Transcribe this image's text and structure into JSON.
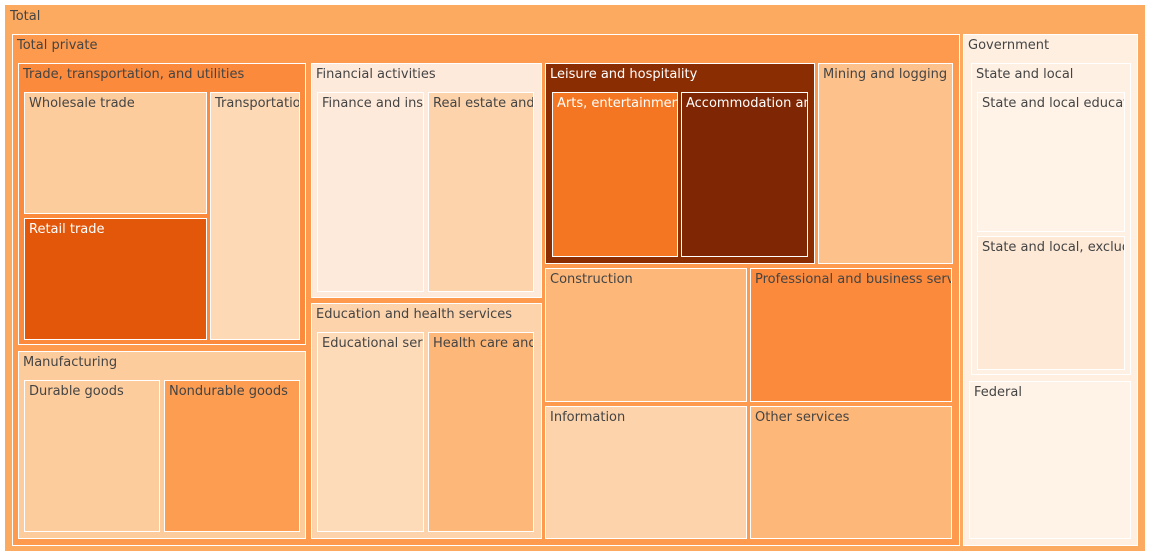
{
  "chart_data": {
    "type": "treemap",
    "root": {
      "name": "Total",
      "color": "#fdaa61",
      "children": [
        {
          "name": "Total private",
          "color": "#fd9a4d",
          "children": [
            {
              "name": "Trade, transportation, and utilities",
              "color": "#fb8a3c",
              "children": [
                {
                  "name": "Wholesale trade",
                  "color": "#fdcc9d"
                },
                {
                  "name": "Retail trade",
                  "color": "#e3570a"
                },
                {
                  "name": "Transportation and warehousing",
                  "color": "#fdd9b6"
                }
              ]
            },
            {
              "name": "Manufacturing",
              "color": "#fdcc9d",
              "children": [
                {
                  "name": "Durable goods",
                  "color": "#fdcc9d"
                },
                {
                  "name": "Nondurable goods",
                  "color": "#fd9d52"
                }
              ]
            },
            {
              "name": "Financial activities",
              "color": "#feeadb",
              "children": [
                {
                  "name": "Finance and insurance",
                  "color": "#feeadb"
                },
                {
                  "name": "Real estate and rental and leasing",
                  "color": "#fdd3ab"
                }
              ]
            },
            {
              "name": "Education and health services",
              "color": "#fdd3ab",
              "children": [
                {
                  "name": "Educational services",
                  "color": "#fddab8"
                },
                {
                  "name": "Health care and social assistance",
                  "color": "#fdb779"
                }
              ]
            },
            {
              "name": "Leisure and hospitality",
              "color": "#8b2d03",
              "children": [
                {
                  "name": "Arts, entertainment, and recreation",
                  "color": "#f57622"
                },
                {
                  "name": "Accommodation and food services",
                  "color": "#7f2704"
                }
              ]
            },
            {
              "name": "Mining and logging",
              "color": "#fdc18c"
            },
            {
              "name": "Construction",
              "color": "#fdb779"
            },
            {
              "name": "Professional and business services",
              "color": "#fb8a3c"
            },
            {
              "name": "Information",
              "color": "#fdd3ab"
            },
            {
              "name": "Other services",
              "color": "#fdb779"
            }
          ]
        },
        {
          "name": "Government",
          "color": "#feefe1",
          "children": [
            {
              "name": "State and local",
              "color": "#fef0e3",
              "children": [
                {
                  "name": "State and local education",
                  "color": "#fff3e8"
                },
                {
                  "name": "State and local, excluding education",
                  "color": "#fee9d7"
                }
              ]
            },
            {
              "name": "Federal",
              "color": "#fff3e8"
            }
          ]
        }
      ]
    }
  }
}
